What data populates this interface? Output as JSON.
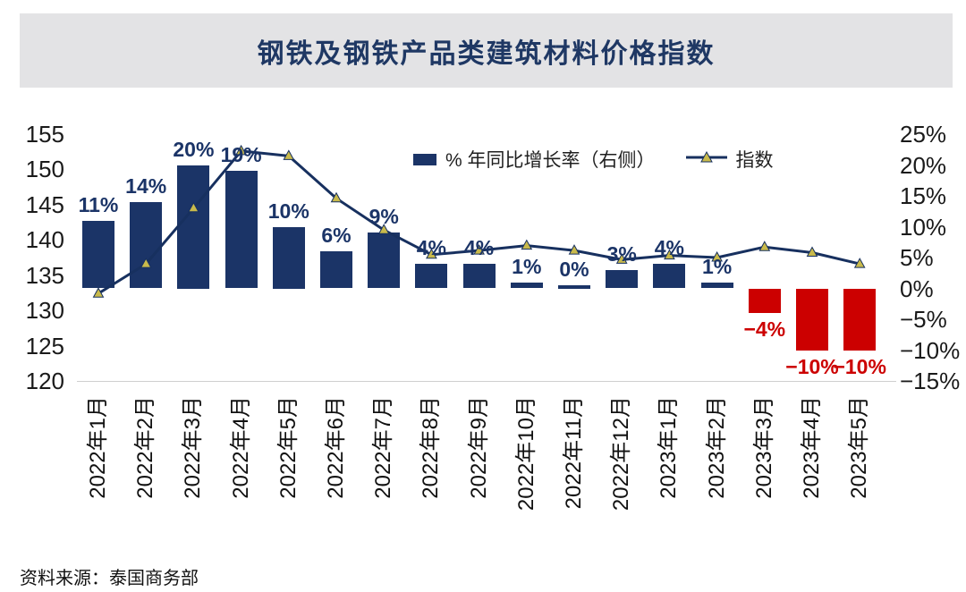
{
  "page": {
    "title": "钢铁及钢铁产品类建筑材料价格指数",
    "source": "资料来源：泰国商务部"
  },
  "legend": {
    "bar_series_label": "% 年同比增长率（右侧）",
    "line_series_label": "指数"
  },
  "colors": {
    "title_text": "#1f3864",
    "title_band_bg": "#e3e3e5",
    "bar_positive": "#1b3467",
    "bar_negative": "#cc0000",
    "label_positive": "#1b3467",
    "label_negative": "#cc0000",
    "line": "#17305f",
    "marker_fill": "#c9ba4b",
    "axis_text": "#1a1a1a",
    "baseline": "#cfcfcf"
  },
  "chart_data": {
    "type": "combo: bar + line",
    "title": "钢铁及钢铁产品类建筑材料价格指数",
    "grid": false,
    "legend_position": "top-center",
    "categories": [
      "2022年1月",
      "2022年2月",
      "2022年3月",
      "2022年4月",
      "2022年5月",
      "2022年6月",
      "2022年7月",
      "2022年8月",
      "2022年9月",
      "2022年10月",
      "2022年11月",
      "2022年12月",
      "2023年1月",
      "2023年2月",
      "2023年3月",
      "2023年4月",
      "2023年5月"
    ],
    "series": [
      {
        "name": "% 年同比增长率（右侧）",
        "type": "bar",
        "axis": "right",
        "unit": "%",
        "values": [
          11,
          14,
          20,
          19,
          10,
          6,
          9,
          4,
          4,
          1,
          0,
          3,
          4,
          1,
          -4,
          -10,
          -10
        ],
        "labels": [
          "11%",
          "14%",
          "20%",
          "19%",
          "10%",
          "6%",
          "9%",
          "4%",
          "4%",
          "1%",
          "0%",
          "3%",
          "4%",
          "1%",
          "−4%",
          "−10%",
          "−10%"
        ]
      },
      {
        "name": "指数",
        "type": "line",
        "axis": "left",
        "marker": "triangle-up",
        "values": [
          132.4,
          136.6,
          144.5,
          152.6,
          151.9,
          145.9,
          141.4,
          137.9,
          138.5,
          139.2,
          138.5,
          137.2,
          137.8,
          137.5,
          139.0,
          138.2,
          136.6
        ]
      }
    ],
    "left_axis": {
      "range": [
        120,
        155
      ],
      "tick_values": [
        155,
        150,
        145,
        140,
        135,
        130,
        125,
        120
      ],
      "tick_labels": [
        "155",
        "150",
        "145",
        "140",
        "135",
        "130",
        "125",
        "120"
      ]
    },
    "right_axis": {
      "range": [
        -15,
        25
      ],
      "tick_values": [
        25,
        20,
        15,
        10,
        5,
        0,
        -5,
        -10,
        -15
      ],
      "tick_labels": [
        "25%",
        "20%",
        "15%",
        "10%",
        "5%",
        "0%",
        "−5%",
        "−10%",
        "−15%"
      ]
    }
  }
}
